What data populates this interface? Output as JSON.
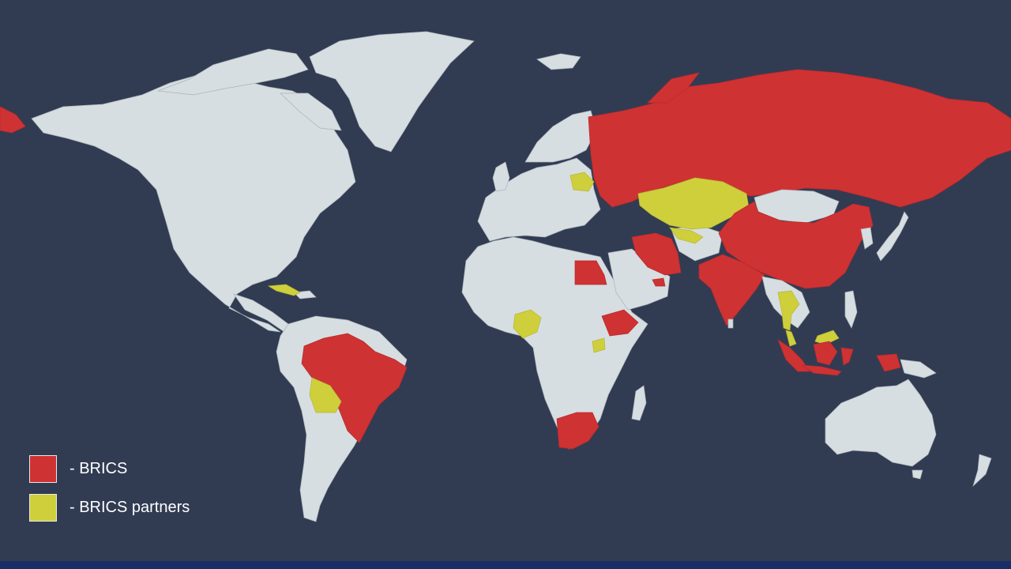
{
  "colors": {
    "ocean": "#313c53",
    "land": "#d6dee2",
    "brics": "#cf3233",
    "partner": "#cfcf3c"
  },
  "legend": {
    "items": [
      {
        "label": "- BRICS",
        "color": "#cf3233"
      },
      {
        "label": "- BRICS partners",
        "color": "#cfcf3c"
      }
    ]
  },
  "regions": {
    "brics_members": [
      "Brazil",
      "Russia",
      "India",
      "China",
      "South Africa",
      "Iran",
      "Egypt",
      "Ethiopia",
      "United Arab Emirates",
      "Indonesia"
    ],
    "brics_partners": [
      "Belarus",
      "Bolivia",
      "Kazakhstan",
      "Uzbekistan",
      "Cuba",
      "Nigeria",
      "Uganda",
      "Thailand",
      "Malaysia"
    ]
  }
}
